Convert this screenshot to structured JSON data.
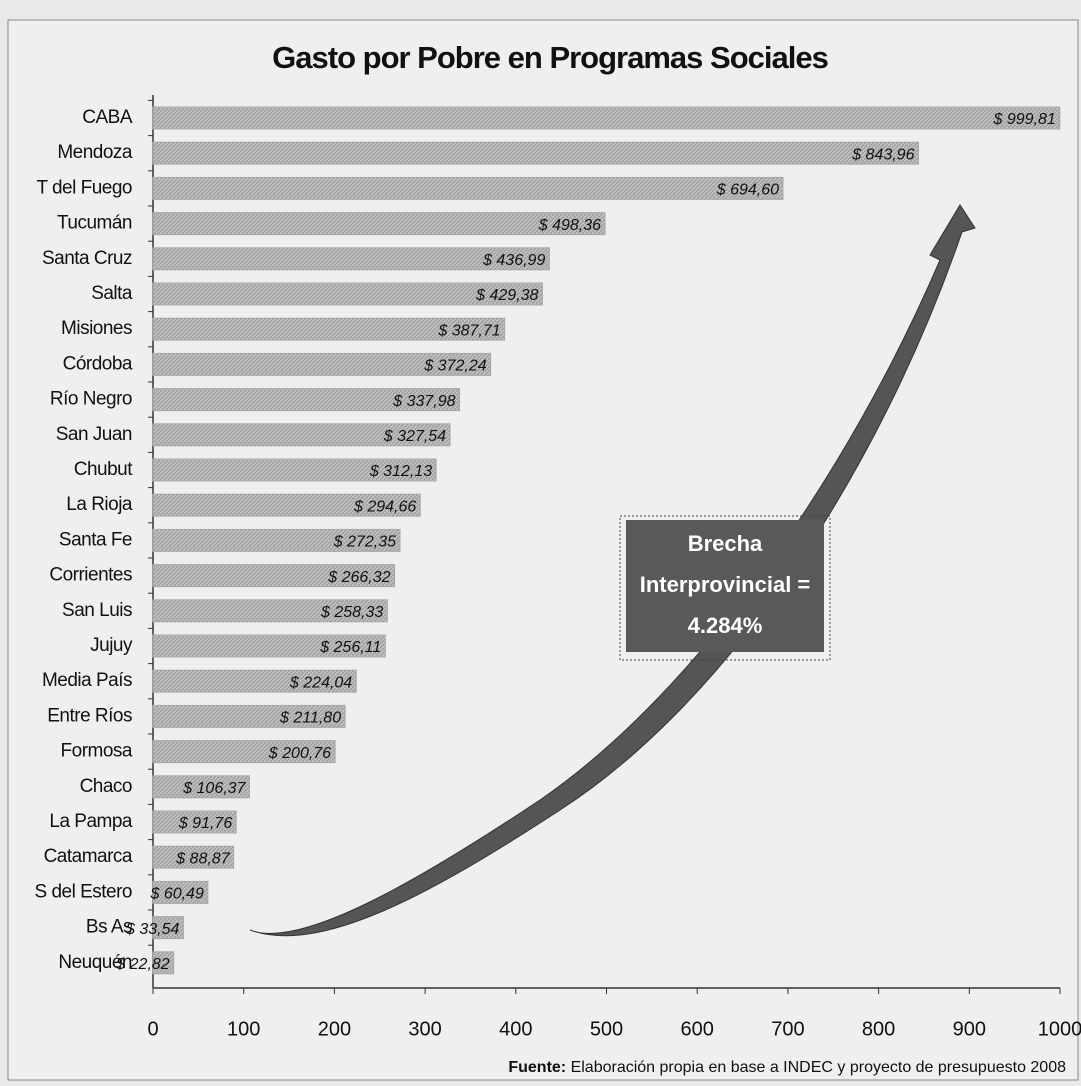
{
  "chart_data": {
    "type": "hbar",
    "title": "Gasto por Pobre en Programas Sociales",
    "categories": [
      "CABA",
      "Mendoza",
      "T del Fuego",
      "Tucumán",
      "Santa Cruz",
      "Salta",
      "Misiones",
      "Córdoba",
      "Río Negro",
      "San Juan",
      "Chubut",
      "La Rioja",
      "Santa Fe",
      "Corrientes",
      "San Luis",
      "Jujuy",
      "Media País",
      "Entre Ríos",
      "Formosa",
      "Chaco",
      "La Pampa",
      "Catamarca",
      "S del Estero",
      "Bs As",
      "Neuquén"
    ],
    "values": [
      999.81,
      843.96,
      694.6,
      498.36,
      436.99,
      429.38,
      387.71,
      372.24,
      337.98,
      327.54,
      312.13,
      294.66,
      272.35,
      266.32,
      258.33,
      256.11,
      224.04,
      211.8,
      200.76,
      106.37,
      91.76,
      88.87,
      60.49,
      33.54,
      22.82
    ],
    "value_labels": [
      "$ 999,81",
      "$ 843,96",
      "$ 694,60",
      "$ 498,36",
      "$ 436,99",
      "$ 429,38",
      "$ 387,71",
      "$ 372,24",
      "$ 337,98",
      "$ 327,54",
      "$ 312,13",
      "$ 294,66",
      "$ 272,35",
      "$ 266,32",
      "$ 258,33",
      "$ 256,11",
      "$ 224,04",
      "$ 211,80",
      "$ 200,76",
      "$ 106,37",
      "$ 91,76",
      "$ 88,87",
      "$ 60,49",
      "$ 33,54",
      "$ 22,82"
    ],
    "color": "#b4b4b4",
    "xlim": [
      0,
      1000
    ],
    "xticks": [
      0,
      100,
      200,
      300,
      400,
      500,
      600,
      700,
      800,
      900,
      1000
    ],
    "annotation": [
      "Brecha",
      "Interprovincial =",
      "4.284%"
    ],
    "source_label": "Fuente:",
    "source": "Elaboración propia en base a INDEC y proyecto de presupuesto 2008"
  }
}
